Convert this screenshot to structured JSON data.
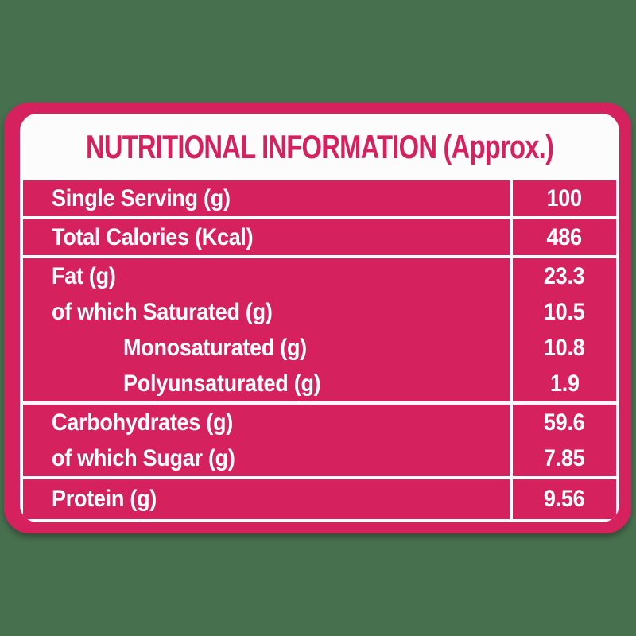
{
  "title": "NUTRITIONAL INFORMATION (Approx.)",
  "colors": {
    "background_green": "#47704F",
    "card_pink": "#D6215F",
    "panel_white": "#FCFCFC",
    "title_text": "#D6215F",
    "row_text": "#FFFFFF"
  },
  "table": {
    "groups": [
      {
        "rows": [
          {
            "label": "Single Serving (g)",
            "value": "100",
            "indent": false
          }
        ]
      },
      {
        "rows": [
          {
            "label": "Total Calories (Kcal)",
            "value": "486",
            "indent": false
          }
        ]
      },
      {
        "rows": [
          {
            "label": "Fat (g)",
            "value": "23.3",
            "indent": false
          },
          {
            "label": "of which Saturated (g)",
            "value": "10.5",
            "indent": false
          },
          {
            "label": "Monosaturated (g)",
            "value": "10.8",
            "indent": true
          },
          {
            "label": "Polyunsaturated (g)",
            "value": "1.9",
            "indent": true
          }
        ]
      },
      {
        "rows": [
          {
            "label": "Carbohydrates (g)",
            "value": "59.6",
            "indent": false
          },
          {
            "label": "of which Sugar (g)",
            "value": "7.85",
            "indent": false
          }
        ]
      },
      {
        "rows": [
          {
            "label": "Protein (g)",
            "value": "9.56",
            "indent": false
          }
        ]
      }
    ]
  }
}
